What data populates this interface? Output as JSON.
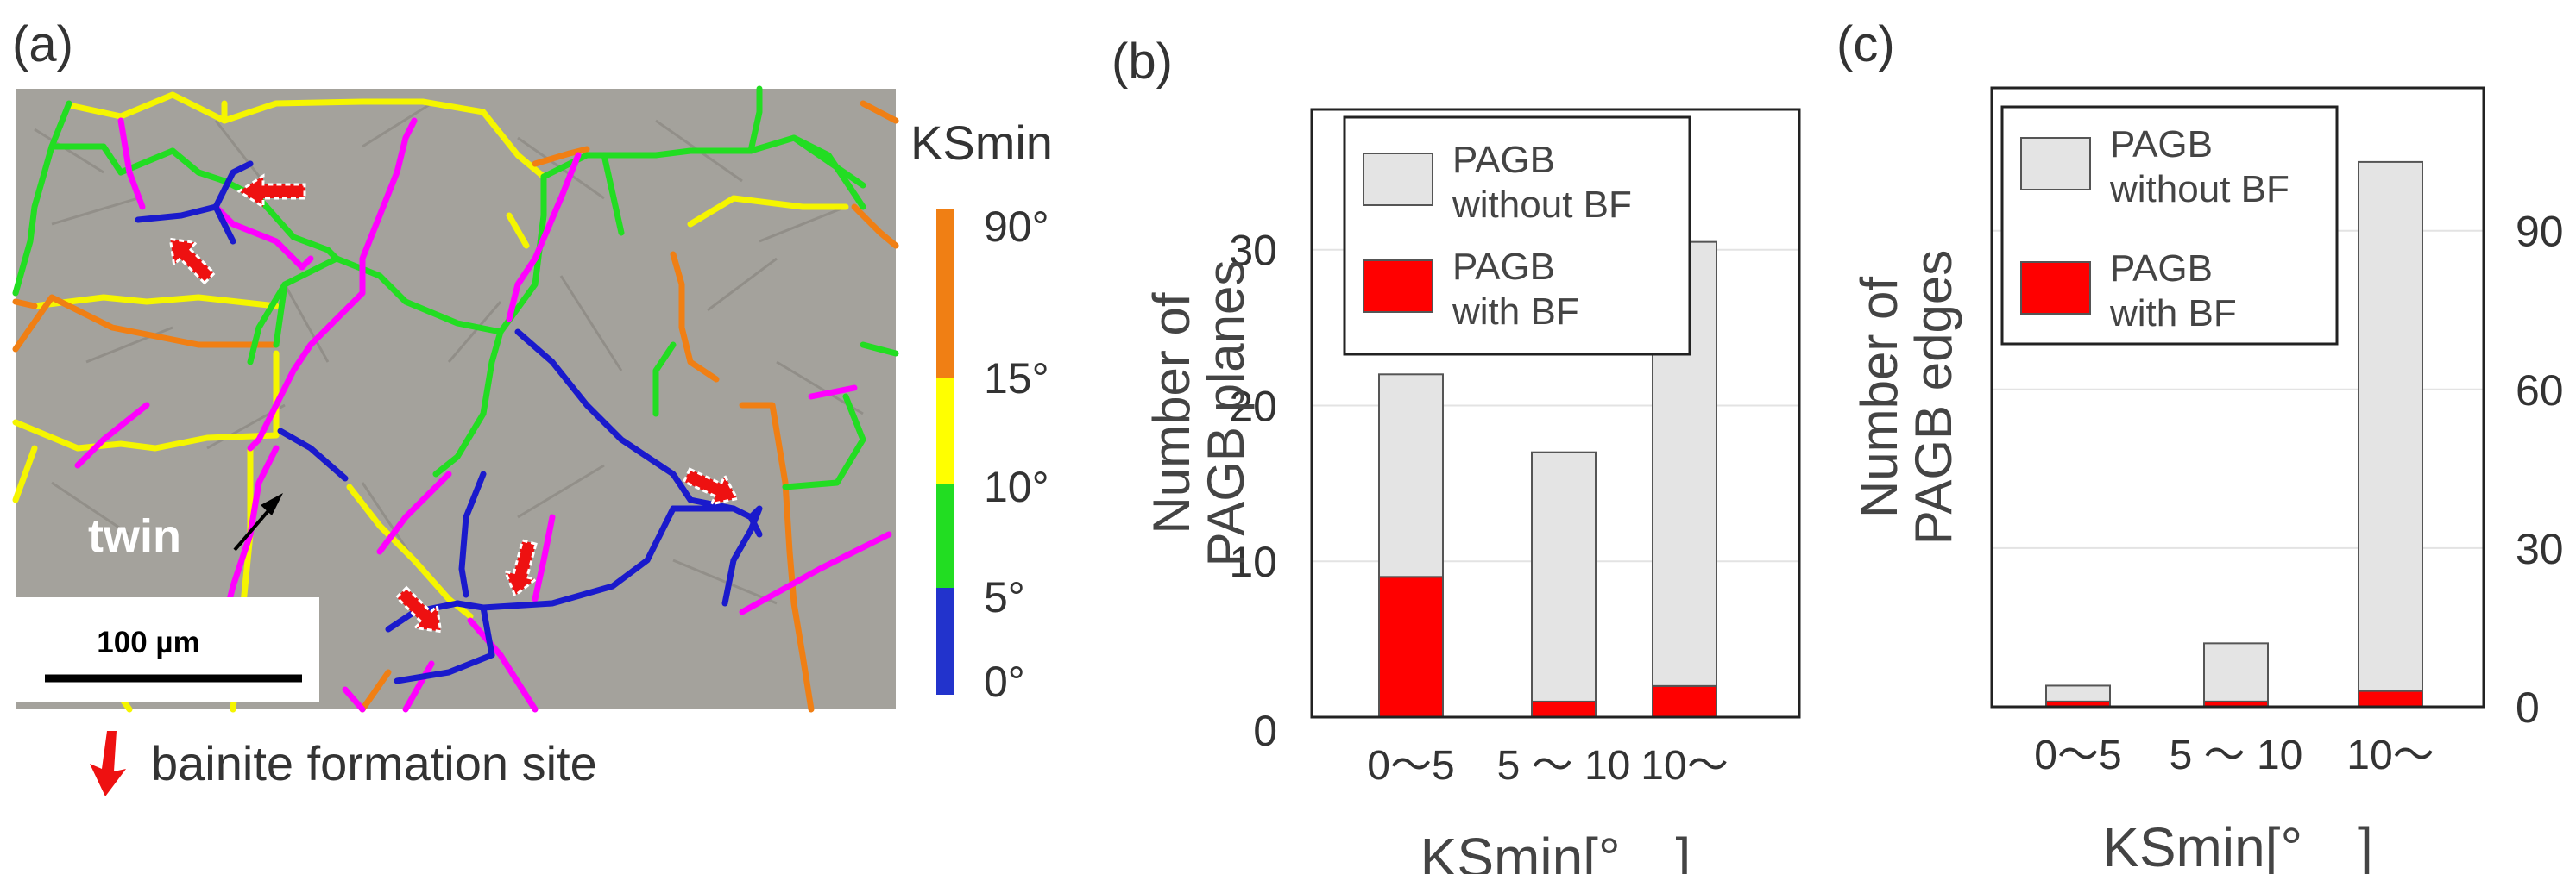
{
  "panel_a": {
    "label": "(a)",
    "scale_bar_text": "100 µm",
    "twin_label": "twin",
    "colorbar": {
      "title": "KSmin",
      "ticks": [
        "90°",
        "15°",
        "10°",
        "5°",
        "0°"
      ],
      "colors": [
        "#f07f14",
        "#ffff00",
        "#22dd22",
        "#2233cc"
      ]
    },
    "legend_text": "bainite formation site",
    "colors": {
      "blue": "#1a1acc",
      "green": "#22dd22",
      "yellow": "#f5f500",
      "orange": "#f07f14",
      "magenta": "#ff00ff",
      "arrow": "#ee1111",
      "micrograph": "#a4a29c"
    }
  },
  "chart_data": [
    {
      "type": "bar",
      "stacked": true,
      "panel_label": "(b)",
      "categories": [
        "0〜5",
        "5 〜 10",
        "10〜"
      ],
      "series": [
        {
          "name": "PAGB with BF",
          "values": [
            9,
            1,
            2
          ],
          "color": "#ff0000"
        },
        {
          "name": "PAGB without BF",
          "values": [
            13,
            16,
            28.5
          ],
          "color": "#e4e4e4"
        }
      ],
      "totals": [
        22,
        17,
        30.5
      ],
      "ylim": [
        0,
        39
      ],
      "yticks": [
        0,
        10,
        20,
        30
      ],
      "xlabel": "KSmin[°　]",
      "ylabel_lines": [
        "Number of",
        "PAGB planes"
      ],
      "legend_entries": [
        {
          "lines": [
            "PAGB",
            "without BF"
          ],
          "color": "#e4e4e4"
        },
        {
          "lines": [
            "PAGB",
            "with BF"
          ],
          "color": "#ff0000"
        }
      ],
      "grid": true
    },
    {
      "type": "bar",
      "stacked": true,
      "panel_label": "(c)",
      "categories": [
        "0〜5",
        "5 〜 10",
        "10〜"
      ],
      "series": [
        {
          "name": "PAGB with BF",
          "values": [
            1,
            1,
            3
          ],
          "color": "#ff0000"
        },
        {
          "name": "PAGB without BF",
          "values": [
            3,
            11,
            100
          ],
          "color": "#e4e4e4"
        }
      ],
      "totals": [
        4,
        12,
        103
      ],
      "ylim": [
        0,
        117
      ],
      "yticks": [
        0,
        30,
        60,
        90
      ],
      "xlabel": "KSmin[°　]",
      "ylabel_lines": [
        "Number of",
        "PAGB edges"
      ],
      "legend_entries": [
        {
          "lines": [
            "PAGB",
            "without BF"
          ],
          "color": "#e4e4e4"
        },
        {
          "lines": [
            "PAGB",
            "with BF"
          ],
          "color": "#ff0000"
        }
      ],
      "grid": true
    }
  ]
}
